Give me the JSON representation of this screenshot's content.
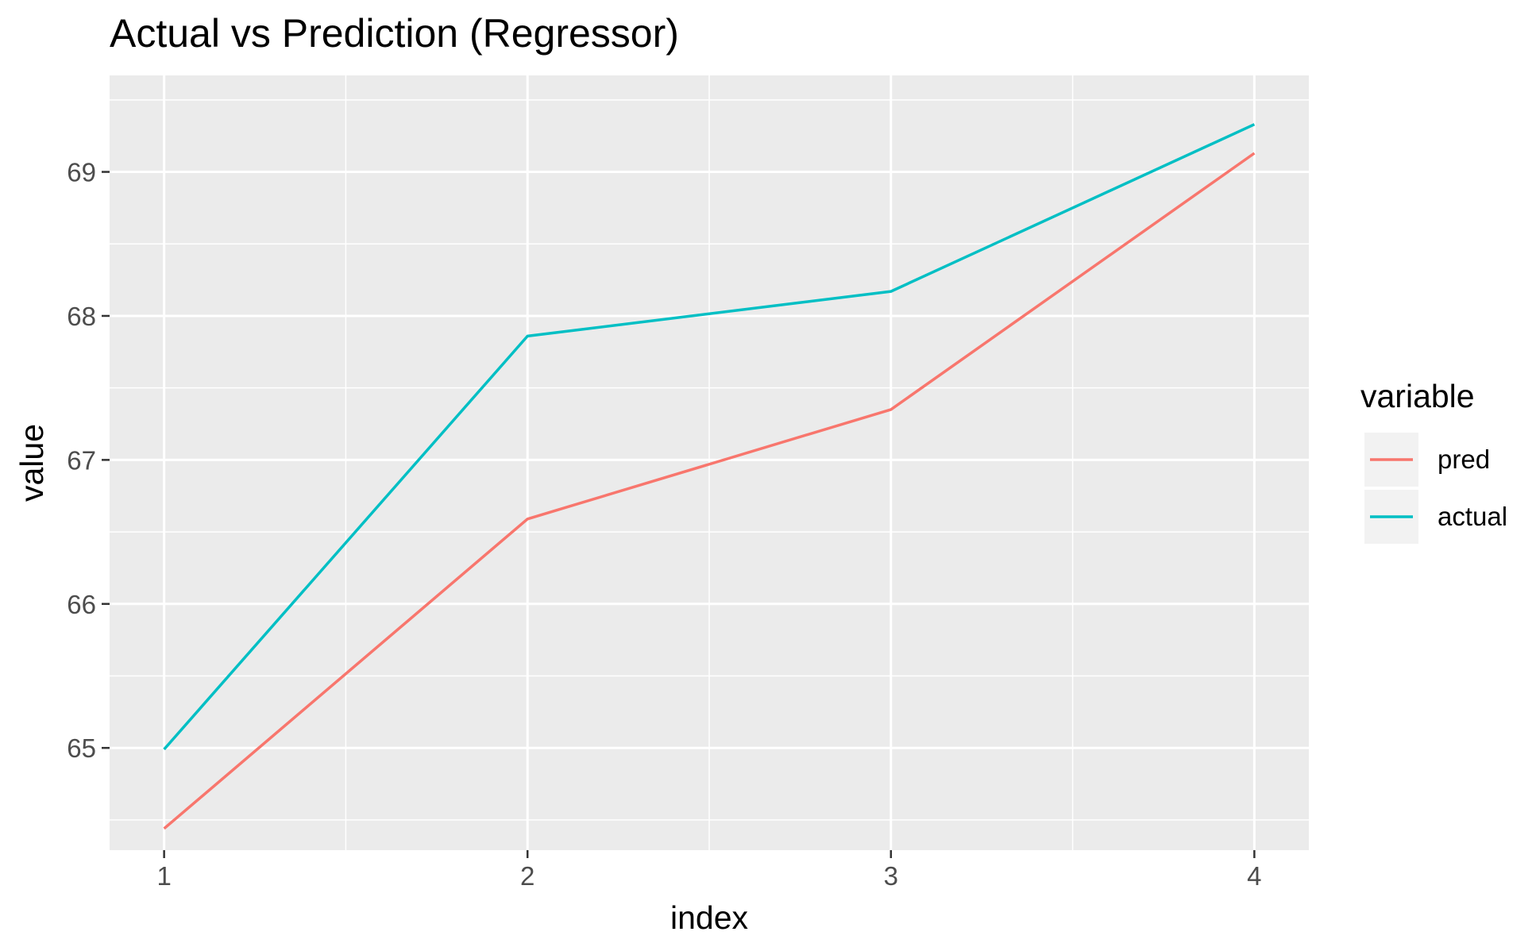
{
  "chart_data": {
    "type": "line",
    "title": "Actual vs Prediction (Regressor)",
    "xlabel": "index",
    "ylabel": "value",
    "x": [
      1,
      2,
      3,
      4
    ],
    "xlim": [
      0.85,
      4.15
    ],
    "ylim": [
      64.29,
      69.67
    ],
    "x_ticks": [
      1,
      2,
      3,
      4
    ],
    "x_minor_ticks": [
      1.5,
      2.5,
      3.5
    ],
    "y_ticks": [
      65,
      66,
      67,
      68,
      69
    ],
    "y_minor_ticks": [
      64.5,
      65.5,
      66.5,
      67.5,
      68.5,
      69.5
    ],
    "grid": true,
    "panel_background": "#ebebeb",
    "legend": {
      "title": "variable",
      "placement": "right"
    },
    "series": [
      {
        "name": "pred",
        "color": "#f8766d",
        "values": [
          64.44,
          66.59,
          67.35,
          69.13
        ]
      },
      {
        "name": "actual",
        "color": "#00bfc4",
        "values": [
          64.99,
          67.86,
          68.17,
          69.33
        ]
      }
    ]
  }
}
